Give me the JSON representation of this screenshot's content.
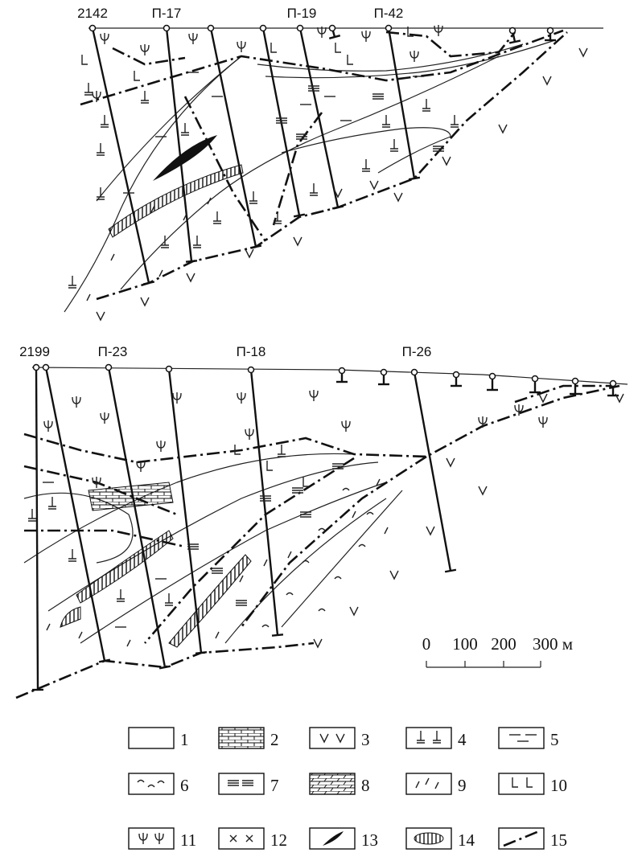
{
  "sections": [
    {
      "wells": [
        "2142",
        "П-17",
        "П-19",
        "П-42"
      ]
    },
    {
      "wells": [
        "2199",
        "П-23",
        "П-18",
        "П-26"
      ]
    }
  ],
  "scale": {
    "labels": [
      "0",
      "100",
      "200",
      "300 м"
    ]
  },
  "legend": [
    "1",
    "2",
    "3",
    "4",
    "5",
    "6",
    "7",
    "8",
    "9",
    "10",
    "11",
    "12",
    "13",
    "14",
    "15"
  ]
}
